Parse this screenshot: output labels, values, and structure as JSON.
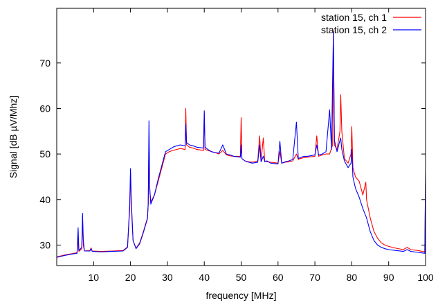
{
  "chart_data": {
    "type": "line",
    "title": "",
    "xlabel": "frequency [MHz]",
    "ylabel": "Signal [dB µV/Mhz]",
    "xlim": [
      0,
      100
    ],
    "ylim": [
      25.5,
      82
    ],
    "x_ticks": [
      10,
      20,
      30,
      40,
      50,
      60,
      70,
      80,
      90,
      100
    ],
    "y_ticks": [
      30,
      40,
      50,
      60,
      70
    ],
    "legend_position": "top-right",
    "grid": false,
    "series": [
      {
        "name": "station 15, ch 1",
        "color": "#ff0000",
        "points": [
          [
            0,
            27.4
          ],
          [
            2,
            27.8
          ],
          [
            4,
            28.1
          ],
          [
            5.5,
            28.3
          ],
          [
            5.8,
            31.5
          ],
          [
            6,
            28.6
          ],
          [
            6.8,
            29.2
          ],
          [
            7,
            35.5
          ],
          [
            7.2,
            30
          ],
          [
            7.5,
            28.7
          ],
          [
            9,
            28.8
          ],
          [
            9.3,
            29.4
          ],
          [
            9.6,
            28.7
          ],
          [
            12,
            28.6
          ],
          [
            15,
            28.7
          ],
          [
            18,
            28.8
          ],
          [
            19.2,
            29.6
          ],
          [
            19.8,
            38
          ],
          [
            20,
            46
          ],
          [
            20.2,
            39
          ],
          [
            20.7,
            31
          ],
          [
            21.5,
            29.3
          ],
          [
            22.5,
            30.5
          ],
          [
            23.5,
            33
          ],
          [
            24.6,
            36
          ],
          [
            24.8,
            39
          ],
          [
            25,
            52
          ],
          [
            25.2,
            42
          ],
          [
            25.5,
            39.5
          ],
          [
            26.5,
            41
          ],
          [
            27.5,
            44
          ],
          [
            28.5,
            47
          ],
          [
            29.5,
            50
          ],
          [
            30.5,
            50.5
          ],
          [
            31.5,
            50.8
          ],
          [
            32.5,
            51
          ],
          [
            33.5,
            51.2
          ],
          [
            34.8,
            51
          ],
          [
            35,
            60
          ],
          [
            35.2,
            52
          ],
          [
            36,
            51.5
          ],
          [
            37,
            51.3
          ],
          [
            38,
            51
          ],
          [
            39.8,
            50.8
          ],
          [
            40,
            59
          ],
          [
            40.2,
            51
          ],
          [
            41,
            50.8
          ],
          [
            42,
            50.5
          ],
          [
            43,
            50.3
          ],
          [
            44,
            50
          ],
          [
            45,
            50.8
          ],
          [
            46,
            49.8
          ],
          [
            47,
            49.6
          ],
          [
            48,
            49.5
          ],
          [
            49.8,
            49.5
          ],
          [
            50,
            58
          ],
          [
            50.2,
            49
          ],
          [
            51,
            48.5
          ],
          [
            52,
            48.3
          ],
          [
            53,
            48.2
          ],
          [
            54.5,
            48.5
          ],
          [
            55,
            54
          ],
          [
            55.4,
            48.5
          ],
          [
            56,
            53.5
          ],
          [
            56.4,
            48.5
          ],
          [
            57,
            48.3
          ],
          [
            58,
            48.2
          ],
          [
            60,
            48
          ],
          [
            60.5,
            50.5
          ],
          [
            61,
            48
          ],
          [
            62,
            48.2
          ],
          [
            63,
            48.3
          ],
          [
            64,
            48.5
          ],
          [
            65,
            50
          ],
          [
            65.5,
            48.8
          ],
          [
            66,
            49
          ],
          [
            67,
            49.2
          ],
          [
            68,
            49.3
          ],
          [
            70,
            49.5
          ],
          [
            70.5,
            54
          ],
          [
            71,
            49.5
          ],
          [
            72,
            49.8
          ],
          [
            73,
            50
          ],
          [
            74,
            50
          ],
          [
            74.8,
            52
          ],
          [
            75,
            77
          ],
          [
            75.3,
            52
          ],
          [
            76,
            51
          ],
          [
            76.8,
            55
          ],
          [
            77,
            63
          ],
          [
            77.3,
            55
          ],
          [
            78,
            49
          ],
          [
            79,
            48
          ],
          [
            79.8,
            50
          ],
          [
            80,
            56
          ],
          [
            80.3,
            47
          ],
          [
            81,
            45
          ],
          [
            82,
            44
          ],
          [
            83,
            41
          ],
          [
            83.8,
            43.8
          ],
          [
            84,
            40
          ],
          [
            85,
            36
          ],
          [
            86,
            33
          ],
          [
            87,
            31.5
          ],
          [
            88,
            30.5
          ],
          [
            89,
            30
          ],
          [
            90,
            29.7
          ],
          [
            92,
            29.3
          ],
          [
            94,
            29
          ],
          [
            95,
            29.5
          ],
          [
            96,
            29
          ],
          [
            98,
            28.8
          ],
          [
            99.8,
            28.5
          ],
          [
            100,
            45
          ]
        ]
      },
      {
        "name": "station 15, ch 2",
        "color": "#0000ff",
        "points": [
          [
            0,
            27.3
          ],
          [
            2,
            27.7
          ],
          [
            4,
            28
          ],
          [
            5.5,
            28.2
          ],
          [
            5.8,
            33.8
          ],
          [
            6,
            28.8
          ],
          [
            6.8,
            29.5
          ],
          [
            7,
            37
          ],
          [
            7.2,
            31
          ],
          [
            7.5,
            28.7
          ],
          [
            9,
            28.7
          ],
          [
            9.3,
            29.2
          ],
          [
            9.6,
            28.6
          ],
          [
            12,
            28.5
          ],
          [
            15,
            28.6
          ],
          [
            18,
            28.7
          ],
          [
            19.2,
            29.5
          ],
          [
            19.8,
            39
          ],
          [
            20,
            46.8
          ],
          [
            20.2,
            40
          ],
          [
            20.7,
            31
          ],
          [
            21.5,
            29.2
          ],
          [
            22.5,
            30.3
          ],
          [
            23.5,
            32.8
          ],
          [
            24.6,
            35.8
          ],
          [
            24.8,
            39
          ],
          [
            25,
            57.3
          ],
          [
            25.2,
            43
          ],
          [
            25.5,
            39
          ],
          [
            26.5,
            41
          ],
          [
            27.5,
            44.5
          ],
          [
            28.5,
            47.5
          ],
          [
            29.5,
            50.5
          ],
          [
            30.5,
            51
          ],
          [
            31.5,
            51.5
          ],
          [
            32.5,
            51.8
          ],
          [
            33.5,
            52
          ],
          [
            34.8,
            51.8
          ],
          [
            35,
            56.5
          ],
          [
            35.2,
            52.5
          ],
          [
            36,
            52
          ],
          [
            37,
            51.8
          ],
          [
            38,
            51.5
          ],
          [
            39.8,
            51.3
          ],
          [
            40,
            59.5
          ],
          [
            40.2,
            51.5
          ],
          [
            41,
            51
          ],
          [
            42,
            50.5
          ],
          [
            43,
            50.3
          ],
          [
            44,
            50.2
          ],
          [
            45,
            52
          ],
          [
            46,
            50
          ],
          [
            47,
            49.8
          ],
          [
            48,
            49.5
          ],
          [
            49.8,
            49.3
          ],
          [
            50,
            52
          ],
          [
            50.2,
            49
          ],
          [
            51,
            48.5
          ],
          [
            52,
            48.2
          ],
          [
            53,
            48
          ],
          [
            54.5,
            48.2
          ],
          [
            55,
            52
          ],
          [
            55.4,
            48.3
          ],
          [
            56,
            49.5
          ],
          [
            56.4,
            48.3
          ],
          [
            57,
            48.5
          ],
          [
            58,
            48
          ],
          [
            60,
            47.8
          ],
          [
            60.5,
            52.8
          ],
          [
            61,
            48
          ],
          [
            62,
            48.3
          ],
          [
            63,
            48.5
          ],
          [
            64,
            48.8
          ],
          [
            65,
            57
          ],
          [
            65.5,
            49
          ],
          [
            66,
            49.2
          ],
          [
            67,
            49.5
          ],
          [
            68,
            49.5
          ],
          [
            70,
            49.8
          ],
          [
            70.5,
            52
          ],
          [
            71,
            49.8
          ],
          [
            72,
            50
          ],
          [
            73,
            50.5
          ],
          [
            74,
            59.7
          ],
          [
            74.5,
            51
          ],
          [
            75,
            76.8
          ],
          [
            75.3,
            53
          ],
          [
            76,
            50.5
          ],
          [
            76.8,
            53
          ],
          [
            77,
            53.5
          ],
          [
            77.3,
            51
          ],
          [
            78,
            48.5
          ],
          [
            79,
            47
          ],
          [
            79.8,
            48
          ],
          [
            80,
            51
          ],
          [
            80.3,
            45
          ],
          [
            81,
            42.5
          ],
          [
            82,
            40.5
          ],
          [
            83,
            38
          ],
          [
            84,
            36
          ],
          [
            85,
            33
          ],
          [
            86,
            31
          ],
          [
            87,
            30
          ],
          [
            88,
            29.5
          ],
          [
            89,
            29.2
          ],
          [
            90,
            29
          ],
          [
            92,
            28.8
          ],
          [
            94,
            28.6
          ],
          [
            95,
            29
          ],
          [
            96,
            28.6
          ],
          [
            98,
            28.4
          ],
          [
            99.8,
            28.2
          ],
          [
            100,
            46
          ]
        ]
      }
    ]
  }
}
